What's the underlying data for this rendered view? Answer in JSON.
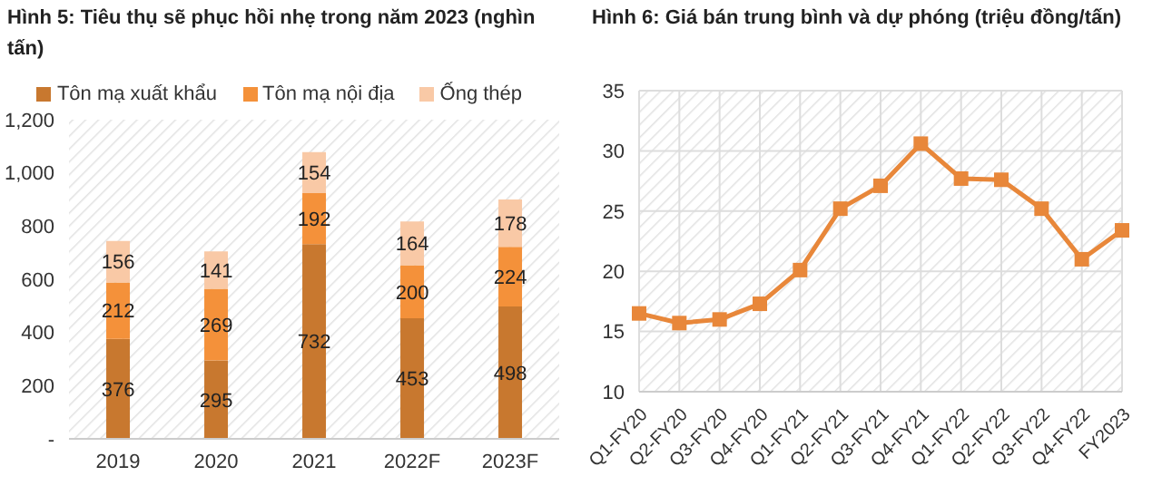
{
  "chart_data": [
    {
      "type": "bar",
      "title": "Hình 5: Tiêu thụ sẽ phục hồi nhẹ trong năm 2023 (nghìn tấn)",
      "categories": [
        "2019",
        "2020",
        "2021",
        "2022F",
        "2023F"
      ],
      "stacked": true,
      "data_labels": true,
      "legend": "top",
      "series": [
        {
          "name": "Tôn mạ xuất khẩu",
          "color": "#c8782f",
          "values": [
            376,
            295,
            732,
            453,
            498
          ]
        },
        {
          "name": "Tôn mạ nội địa",
          "color": "#f4913a",
          "values": [
            212,
            269,
            192,
            200,
            224
          ]
        },
        {
          "name": "Ống thép",
          "color": "#f9c9a6",
          "values": [
            156,
            141,
            154,
            164,
            178
          ]
        }
      ],
      "ylim": [
        0,
        1200
      ],
      "yticks": [
        {
          "value": 0,
          "label": "-"
        },
        200,
        400,
        600,
        800,
        {
          "value": 1000,
          "label": "1,000"
        },
        {
          "value": 1200,
          "label": "1,200"
        }
      ]
    },
    {
      "type": "line",
      "title": "Hình 6: Giá bán trung bình và dự phóng (triệu đồng/tấn)",
      "categories": [
        "Q1-FY20",
        "Q2-FY20",
        "Q3-FY20",
        "Q4-FY20",
        "Q1-FY21",
        "Q2-FY21",
        "Q3-FY21",
        "Q4-FY21",
        "Q1-FY22",
        "Q2-FY22",
        "Q3-FY22",
        "Q4-FY22",
        "FY2023"
      ],
      "marker": "square",
      "grid": true,
      "series": [
        {
          "color": "#e8873a",
          "values": [
            16.5,
            15.7,
            16.0,
            17.3,
            20.1,
            25.2,
            27.1,
            30.6,
            27.7,
            27.6,
            25.2,
            21.0,
            23.4
          ]
        }
      ],
      "ylim": [
        10,
        35
      ],
      "yticks": [
        10,
        15,
        20,
        25,
        30,
        35
      ]
    }
  ]
}
